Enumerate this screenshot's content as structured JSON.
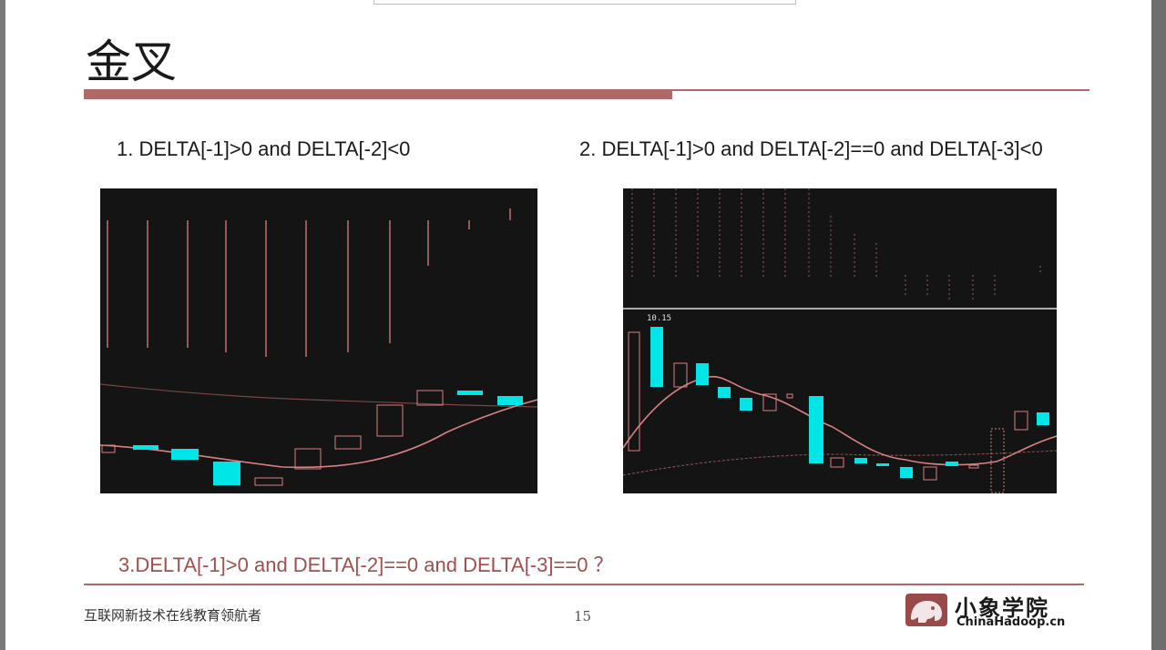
{
  "slide": {
    "title": "金叉",
    "condition_1": "1. DELTA[-1]>0 and DELTA[-2]<0",
    "condition_2": "2. DELTA[-1]>0 and DELTA[-2]==0 and DELTA[-3]<0",
    "condition_3": "3.DELTA[-1]>0 and DELTA[-2]==0 and DELTA[-3]==0 ？",
    "footer_text": "互联网新技术在线教育领航者",
    "page_number": "15",
    "logo_name": "小象学院",
    "logo_url": "ChinaHadoop.cn"
  },
  "chart_2_price_label": "10.15",
  "colors": {
    "accent": "#b06868",
    "chart_background": "#141414",
    "candle_up": "#00e5e5",
    "moving_average": "#d98080"
  },
  "icons": {
    "logo": "elephant-logo-icon"
  }
}
